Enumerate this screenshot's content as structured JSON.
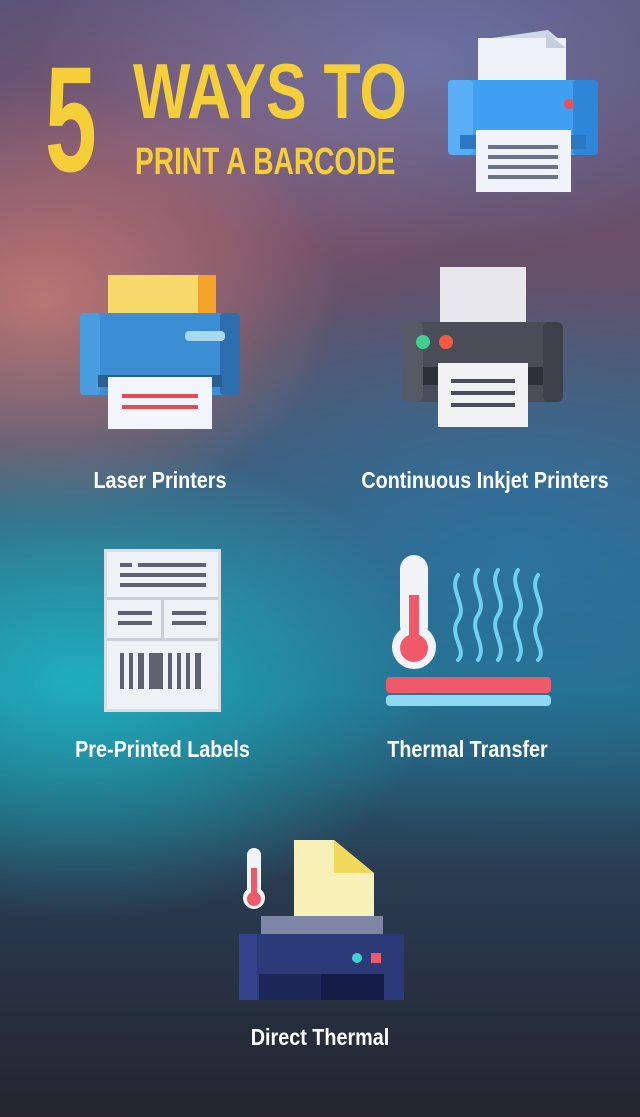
{
  "header": {
    "number": "5",
    "line1": "WAYS TO",
    "line2": "PRINT A BARCODE"
  },
  "methods": [
    {
      "label": "Laser Printers",
      "icon": "laser-printer-icon"
    },
    {
      "label": "Continuous Inkjet Printers",
      "icon": "inkjet-printer-icon"
    },
    {
      "label": "Pre-Printed Labels",
      "icon": "barcode-label-icon"
    },
    {
      "label": "Thermal Transfer",
      "icon": "thermometer-heat-icon"
    },
    {
      "label": "Direct Thermal",
      "icon": "thermal-printer-icon"
    }
  ],
  "colors": {
    "title": "#f5cf3a",
    "label": "#ffffff"
  }
}
